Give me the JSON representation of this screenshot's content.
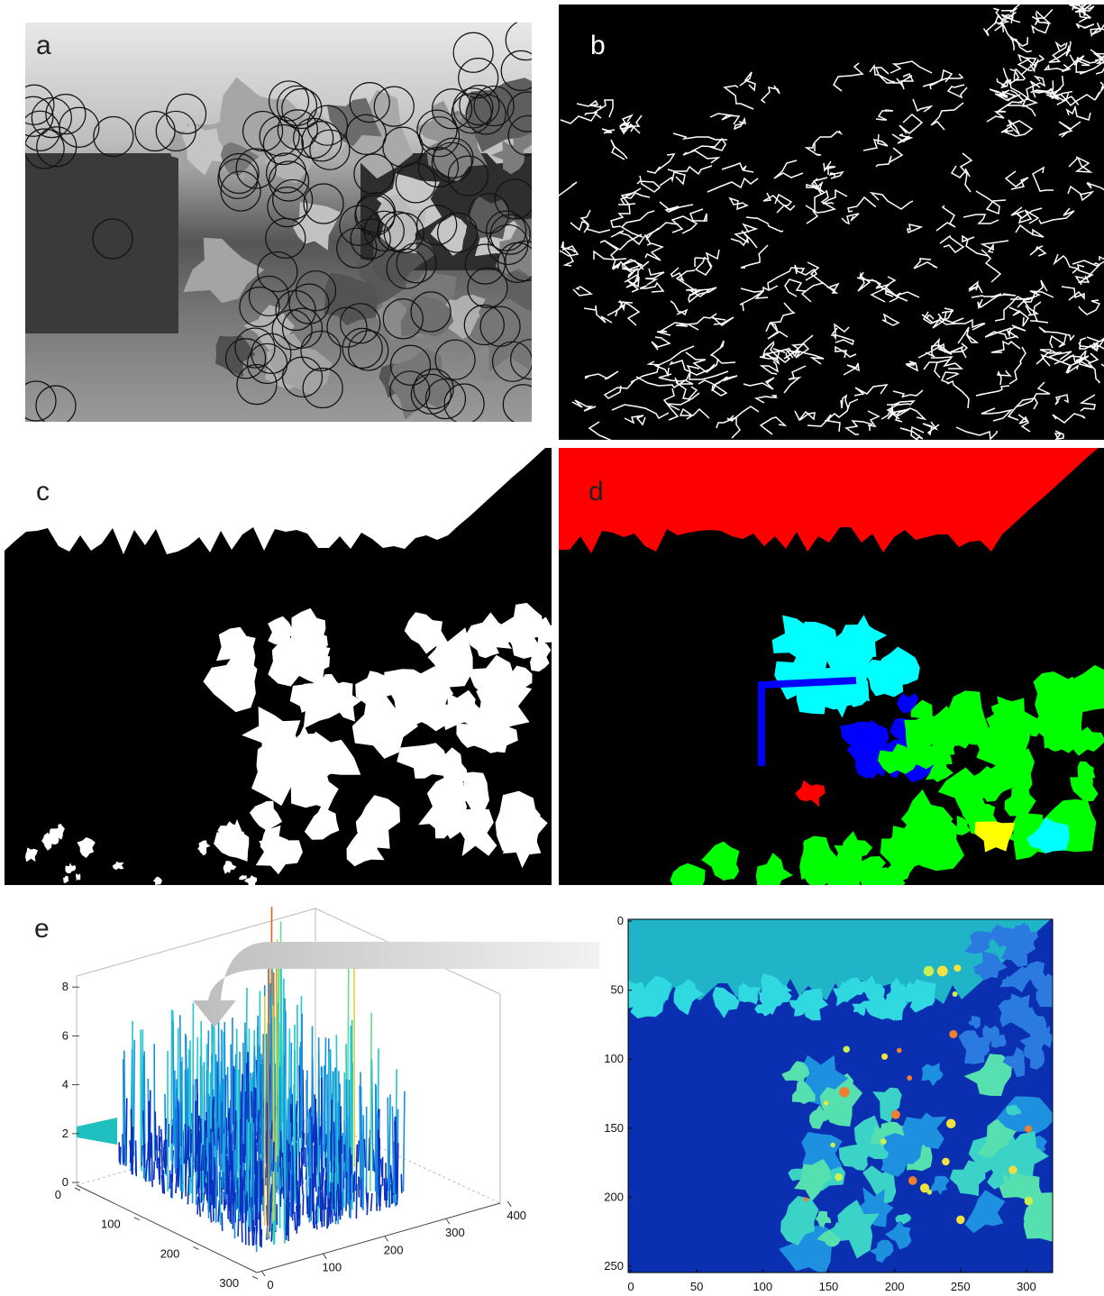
{
  "panel_labels": [
    "a",
    "b",
    "c",
    "d",
    "e"
  ],
  "surface_plot": {
    "zticks": [
      0,
      2,
      4,
      6,
      8
    ],
    "yticks": [
      0,
      100,
      200,
      300
    ],
    "xticks": [
      0,
      100,
      200,
      300,
      400
    ]
  },
  "heatmap": {
    "yticks": [
      0,
      50,
      100,
      150,
      200,
      250
    ],
    "xticks": [
      0,
      50,
      100,
      150,
      200,
      250,
      300
    ]
  }
}
